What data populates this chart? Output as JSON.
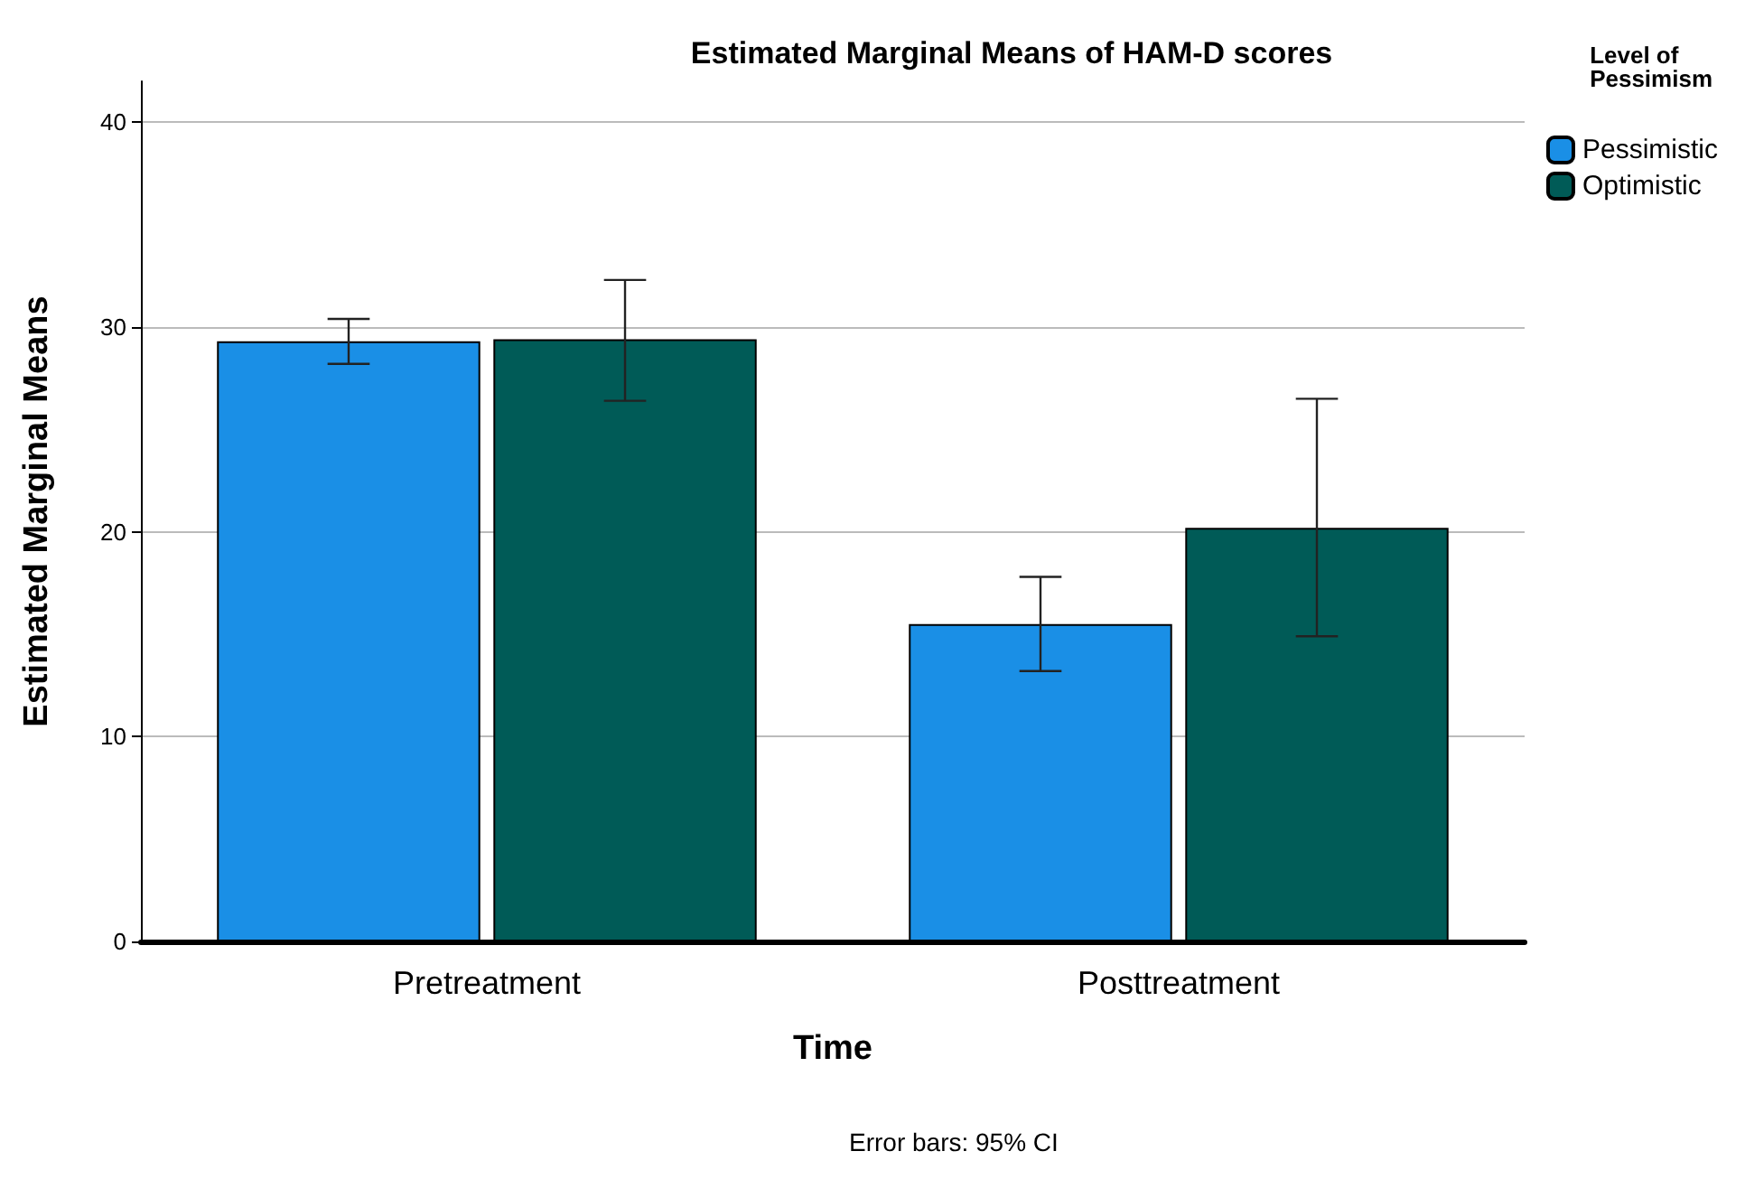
{
  "chart_data": {
    "type": "bar",
    "title": "Estimated Marginal Means of HAM-D scores",
    "xlabel": "Time",
    "ylabel": "Estimated Marginal Means",
    "legend_title": "Level of\nPessimism",
    "categories": [
      "Pretreatment",
      "Posttreatment"
    ],
    "series": [
      {
        "name": "Pessimistic",
        "color": "#1a8fe6",
        "values": [
          29.3,
          15.5
        ],
        "errors": [
          [
            28.2,
            30.4
          ],
          [
            13.2,
            17.8
          ]
        ]
      },
      {
        "name": "Optimistic",
        "color": "#005b57",
        "values": [
          29.4,
          20.2
        ],
        "errors": [
          [
            26.4,
            32.3
          ],
          [
            14.9,
            26.5
          ]
        ]
      }
    ],
    "ylim": [
      0,
      42
    ],
    "yticks": [
      0,
      10,
      20,
      30,
      40
    ],
    "grid": "y",
    "legend": "top right",
    "annotations": [
      "Error bars: 95% CI"
    ]
  }
}
